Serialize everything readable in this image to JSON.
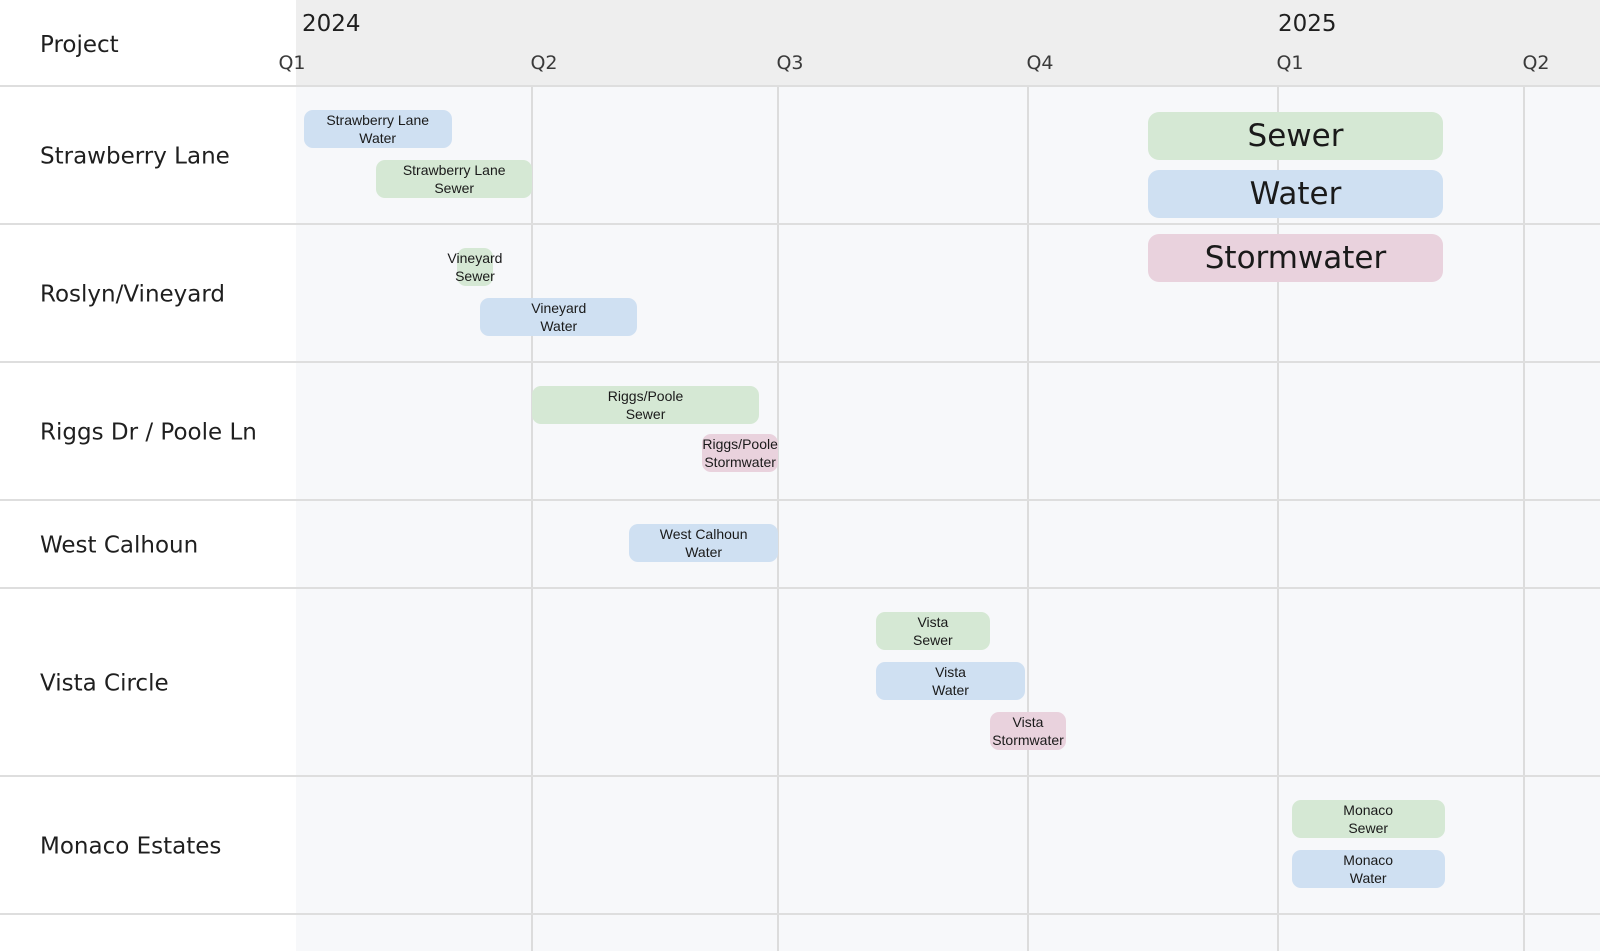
{
  "chart_data": {
    "type": "gantt",
    "column_title": "Project",
    "years": [
      {
        "label": "2024",
        "start": "2024-01-01"
      },
      {
        "label": "2025",
        "start": "2025-01-01"
      }
    ],
    "quarters": [
      {
        "label": "Q1",
        "date": "2024-01-01"
      },
      {
        "label": "Q2",
        "date": "2024-04-01"
      },
      {
        "label": "Q3",
        "date": "2024-07-01"
      },
      {
        "label": "Q4",
        "date": "2024-10-01"
      },
      {
        "label": "Q1",
        "date": "2025-01-01"
      },
      {
        "label": "Q2",
        "date": "2025-04-01"
      }
    ],
    "xlim": [
      "2024-01-01",
      "2025-04-15"
    ],
    "rows": [
      {
        "label": "Strawberry Lane",
        "tasks": [
          {
            "label": "Strawberry Lane\nWater",
            "type": "Water",
            "start": "2024-01-04",
            "end": "2024-03-01"
          },
          {
            "label": "Strawberry Lane\nSewer",
            "type": "Sewer",
            "start": "2024-02-01",
            "end": "2024-04-01"
          }
        ]
      },
      {
        "label": "Roslyn/Vineyard",
        "tasks": [
          {
            "label": "Vineyard\nSewer",
            "type": "Sewer",
            "start": "2024-03-03",
            "end": "2024-03-17"
          },
          {
            "label": "Vineyard\nWater",
            "type": "Water",
            "start": "2024-03-12",
            "end": "2024-05-10"
          }
        ]
      },
      {
        "label": "Riggs Dr / Poole Ln",
        "tasks": [
          {
            "label": "Riggs/Poole\nSewer",
            "type": "Sewer",
            "start": "2024-04-01",
            "end": "2024-06-24"
          },
          {
            "label": "Riggs/Poole\nStormwater",
            "type": "Stormwater",
            "start": "2024-06-03",
            "end": "2024-07-01"
          }
        ]
      },
      {
        "label": "West Calhoun",
        "tasks": [
          {
            "label": "West Calhoun\nWater",
            "type": "Water",
            "start": "2024-05-07",
            "end": "2024-07-01"
          }
        ]
      },
      {
        "label": "Vista Circle",
        "tasks": [
          {
            "label": "Vista\nSewer",
            "type": "Sewer",
            "start": "2024-08-06",
            "end": "2024-09-17"
          },
          {
            "label": "Vista\nWater",
            "type": "Water",
            "start": "2024-08-06",
            "end": "2024-09-30"
          },
          {
            "label": "Vista\nStormwater",
            "type": "Stormwater",
            "start": "2024-09-17",
            "end": "2024-10-15"
          }
        ]
      },
      {
        "label": "Monaco Estates",
        "tasks": [
          {
            "label": "Monaco\nSewer",
            "type": "Sewer",
            "start": "2025-01-06",
            "end": "2025-03-03"
          },
          {
            "label": "Monaco\nWater",
            "type": "Water",
            "start": "2025-01-06",
            "end": "2025-03-03"
          }
        ]
      }
    ],
    "legend": {
      "position": "top-right",
      "items": [
        {
          "label": "Sewer",
          "color": "#d5e8d4"
        },
        {
          "label": "Water",
          "color": "#cfe0f2"
        },
        {
          "label": "Stormwater",
          "color": "#e9d2dd"
        }
      ]
    },
    "colors": {
      "Sewer": "#d5e8d4",
      "Water": "#cfe0f2",
      "Stormwater": "#e9d2dd"
    },
    "grid": true
  }
}
